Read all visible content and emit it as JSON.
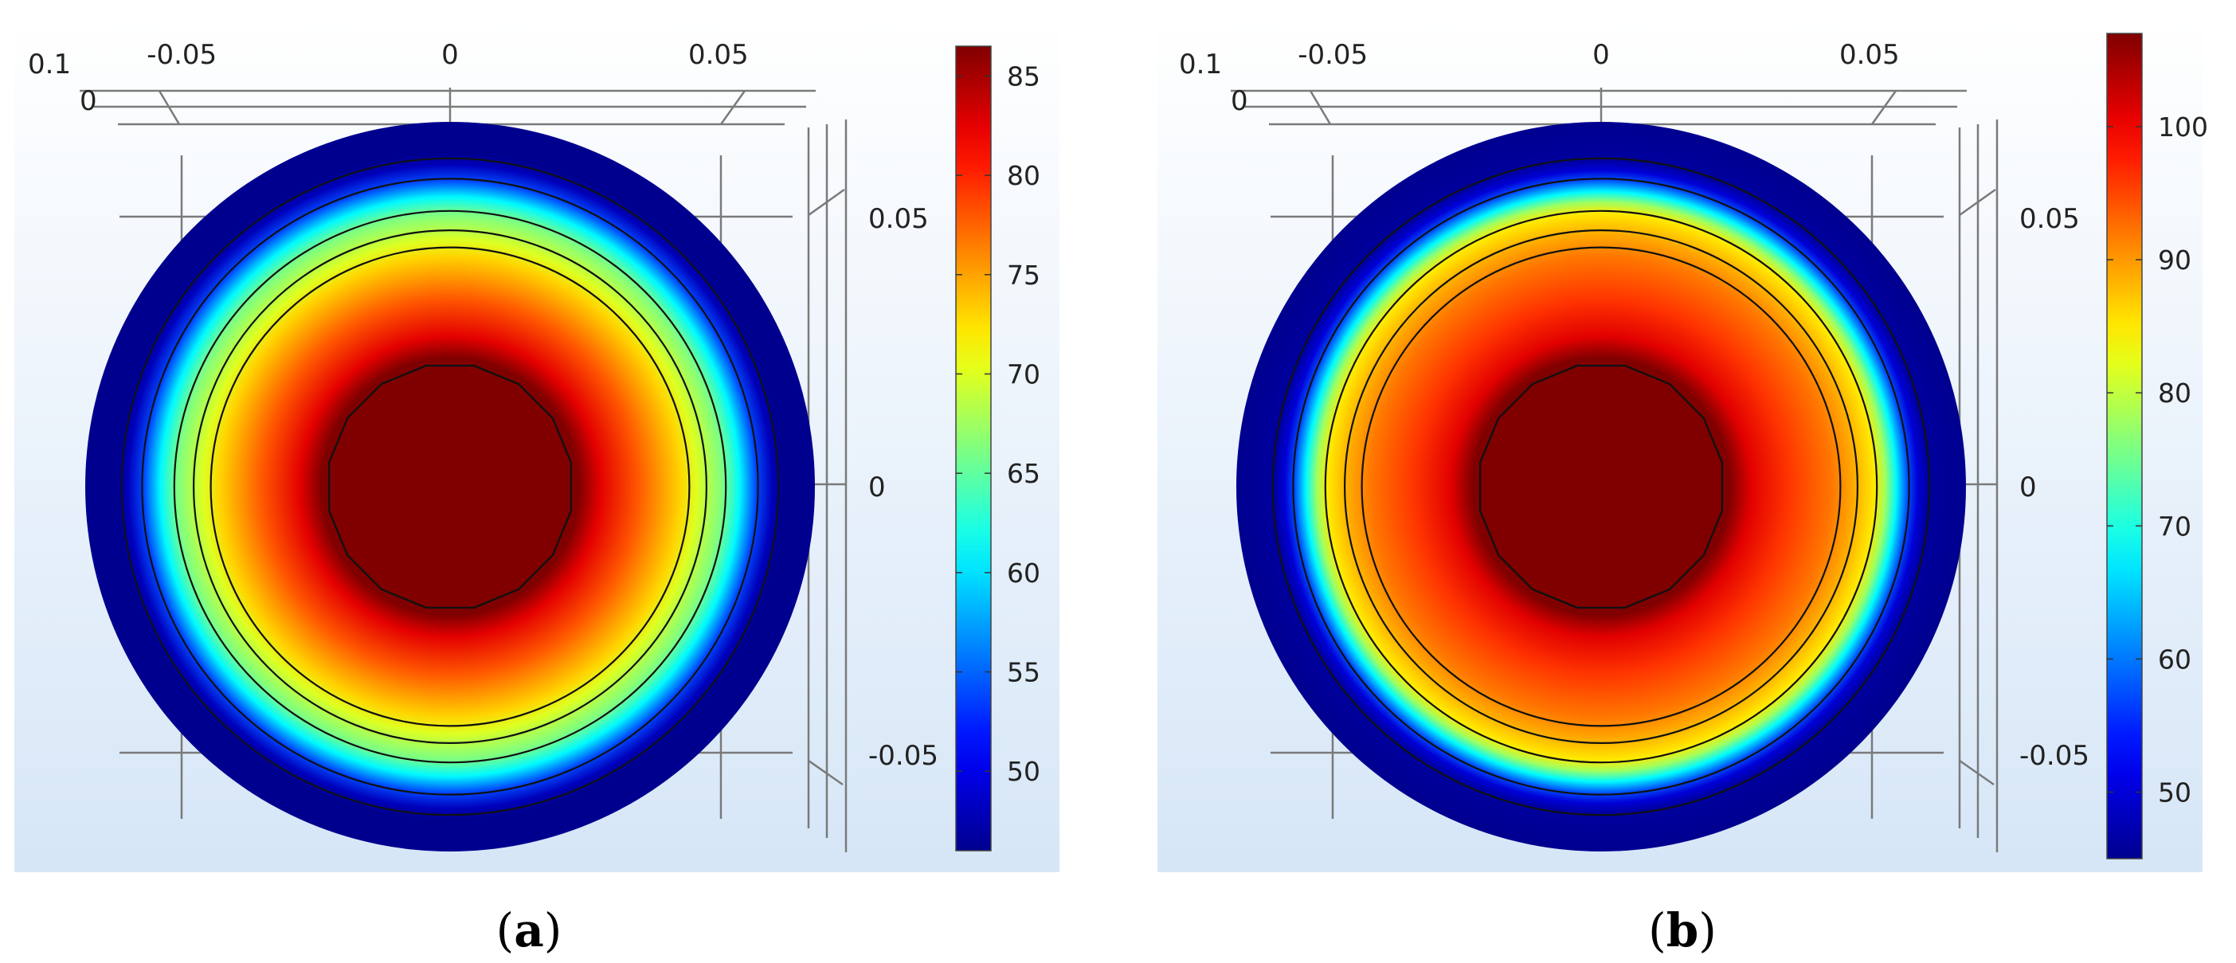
{
  "chart_data": [
    {
      "type": "heatmap",
      "panel_id": "a",
      "caption_open": "(",
      "caption_letter": "a",
      "caption_close": ")",
      "description_kind": "radial temperature field of a circular cross-section",
      "x_ticks": [
        {
          "value": -0.05,
          "label": "-0.05"
        },
        {
          "value": 0,
          "label": "0"
        },
        {
          "value": 0.05,
          "label": "0.05"
        }
      ],
      "y_ticks": [
        {
          "value": 0.05,
          "label": "0.05"
        },
        {
          "value": 0,
          "label": "0"
        },
        {
          "value": -0.05,
          "label": "-0.05"
        }
      ],
      "z_axis_labels": [
        {
          "label": "0.1"
        },
        {
          "label": "0"
        }
      ],
      "colorbar": {
        "min": 46,
        "max": 86.5,
        "ticks": [
          50,
          55,
          60,
          65,
          70,
          75,
          80,
          85
        ]
      },
      "field": {
        "outer_radius": 0.068,
        "core_radius": 0.023,
        "core_value": 86.5,
        "profile": [
          {
            "r": 0.0,
            "v": 86.5
          },
          {
            "r": 0.024,
            "v": 86.5
          },
          {
            "r": 0.028,
            "v": 82.5
          },
          {
            "r": 0.035,
            "v": 78.0
          },
          {
            "r": 0.043,
            "v": 73.0
          },
          {
            "r": 0.046,
            "v": 70.0
          },
          {
            "r": 0.051,
            "v": 66.0
          },
          {
            "r": 0.054,
            "v": 61.0
          },
          {
            "r": 0.057,
            "v": 54.0
          },
          {
            "r": 0.06,
            "v": 48.0
          },
          {
            "r": 0.062,
            "v": 46.0
          },
          {
            "r": 0.068,
            "v": 46.0
          }
        ]
      },
      "contour_radii": [
        0.0446,
        0.0478,
        0.0514,
        0.0574,
        0.0612
      ]
    },
    {
      "type": "heatmap",
      "panel_id": "b",
      "caption_open": "(",
      "caption_letter": "b",
      "caption_close": ")",
      "description_kind": "radial temperature field of a circular cross-section",
      "x_ticks": [
        {
          "value": -0.05,
          "label": "-0.05"
        },
        {
          "value": 0,
          "label": "0"
        },
        {
          "value": 0.05,
          "label": "0.05"
        }
      ],
      "y_ticks": [
        {
          "value": 0.05,
          "label": "0.05"
        },
        {
          "value": 0,
          "label": "0"
        },
        {
          "value": -0.05,
          "label": "-0.05"
        }
      ],
      "z_axis_labels": [
        {
          "label": "0.1"
        },
        {
          "label": "0"
        }
      ],
      "colorbar": {
        "min": 45,
        "max": 107,
        "ticks": [
          50,
          60,
          70,
          80,
          90,
          100
        ]
      },
      "field": {
        "outer_radius": 0.068,
        "core_radius": 0.023,
        "core_value": 107,
        "profile": [
          {
            "r": 0.0,
            "v": 107
          },
          {
            "r": 0.024,
            "v": 107
          },
          {
            "r": 0.028,
            "v": 101
          },
          {
            "r": 0.035,
            "v": 96.0
          },
          {
            "r": 0.043,
            "v": 92.0
          },
          {
            "r": 0.047,
            "v": 89.0
          },
          {
            "r": 0.051,
            "v": 85.0
          },
          {
            "r": 0.053,
            "v": 78.0
          },
          {
            "r": 0.055,
            "v": 68.0
          },
          {
            "r": 0.057,
            "v": 58.0
          },
          {
            "r": 0.059,
            "v": 50.0
          },
          {
            "r": 0.061,
            "v": 46.0
          },
          {
            "r": 0.068,
            "v": 45.0
          }
        ]
      },
      "contour_radii": [
        0.0446,
        0.0478,
        0.0514,
        0.0574,
        0.0612
      ]
    }
  ]
}
